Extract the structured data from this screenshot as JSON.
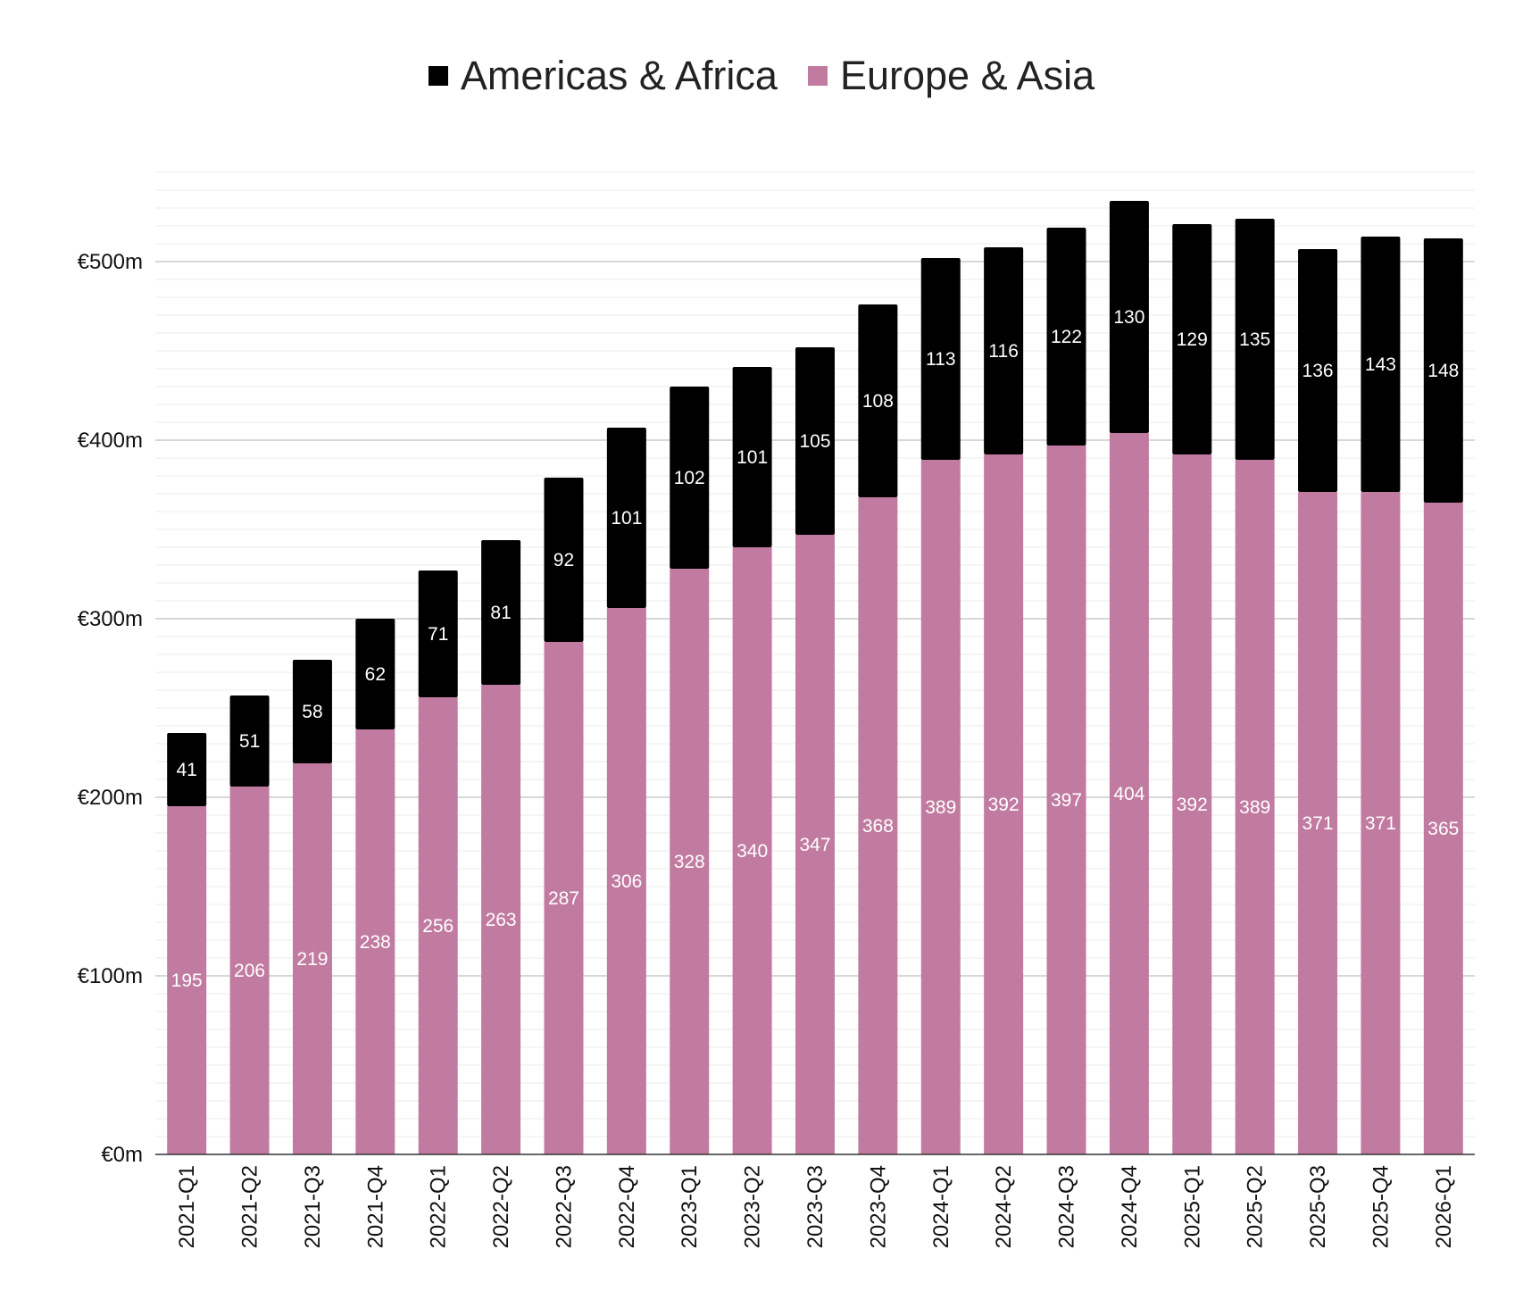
{
  "chart_data": {
    "type": "bar",
    "stacked": true,
    "title": "",
    "xlabel": "",
    "ylabel": "",
    "ylim": [
      0,
      550
    ],
    "yticks": [
      0,
      100,
      200,
      300,
      400,
      500
    ],
    "ytick_labels": [
      "€0m",
      "€100m",
      "€200m",
      "€300m",
      "€400m",
      "€500m"
    ],
    "minor_gridline_step": 10,
    "legend_position": "top-center",
    "categories": [
      "2021-Q1",
      "2021-Q2",
      "2021-Q3",
      "2021-Q4",
      "2022-Q1",
      "2022-Q2",
      "2022-Q3",
      "2022-Q4",
      "2023-Q1",
      "2023-Q2",
      "2023-Q3",
      "2023-Q4",
      "2024-Q1",
      "2024-Q2",
      "2024-Q3",
      "2024-Q4",
      "2025-Q1",
      "2025-Q2",
      "2025-Q3",
      "2025-Q4",
      "2026-Q1"
    ],
    "series": [
      {
        "name": "Europe & Asia",
        "color": "#c27ba0",
        "values": [
          195,
          206,
          219,
          238,
          256,
          263,
          287,
          306,
          328,
          340,
          347,
          368,
          389,
          392,
          397,
          404,
          392,
          389,
          371,
          371,
          365
        ]
      },
      {
        "name": "Americas & Africa",
        "color": "#000000",
        "values": [
          41,
          51,
          58,
          62,
          71,
          81,
          92,
          101,
          102,
          101,
          105,
          108,
          113,
          116,
          122,
          130,
          129,
          135,
          136,
          143,
          148
        ]
      }
    ],
    "legend_order": [
      "Americas & Africa",
      "Europe & Asia"
    ]
  }
}
